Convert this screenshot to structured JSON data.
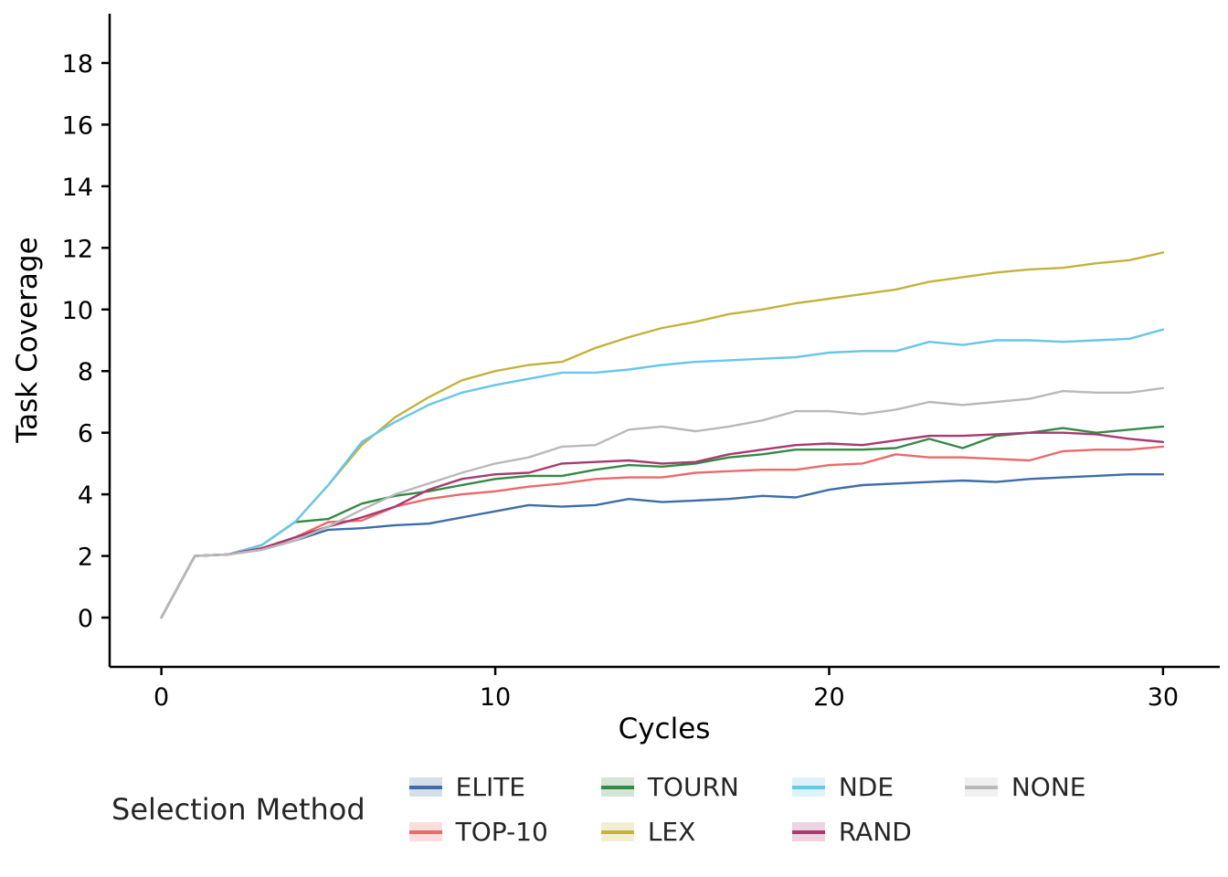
{
  "chart_data": {
    "type": "line",
    "title": "",
    "xlabel": "Cycles",
    "ylabel": "Task Coverage",
    "x": [
      0,
      1,
      2,
      3,
      4,
      5,
      6,
      7,
      8,
      9,
      10,
      11,
      12,
      13,
      14,
      15,
      16,
      17,
      18,
      19,
      20,
      21,
      22,
      23,
      24,
      25,
      26,
      27,
      28,
      29,
      30
    ],
    "xticks": [
      0,
      10,
      20,
      30
    ],
    "yticks": [
      0,
      2,
      4,
      6,
      8,
      10,
      12,
      14,
      16,
      18
    ],
    "xlim": [
      -1.55,
      31.7
    ],
    "ylim": [
      -1.6,
      19.6
    ],
    "grid": false,
    "legend_position": "bottom",
    "series": [
      {
        "name": "ELITE",
        "color": "#3e6da8",
        "values": [
          0,
          2.0,
          2.05,
          2.2,
          2.5,
          2.85,
          2.9,
          3.0,
          3.05,
          3.25,
          3.45,
          3.65,
          3.6,
          3.65,
          3.85,
          3.75,
          3.8,
          3.85,
          3.95,
          3.9,
          4.15,
          4.3,
          4.35,
          4.4,
          4.45,
          4.4,
          4.5,
          4.55,
          4.6,
          4.65,
          4.65
        ]
      },
      {
        "name": "TOP-10",
        "color": "#ea6a6a",
        "values": [
          0,
          2.0,
          2.05,
          2.2,
          2.6,
          3.1,
          3.15,
          3.6,
          3.85,
          4.0,
          4.1,
          4.25,
          4.35,
          4.5,
          4.55,
          4.55,
          4.7,
          4.75,
          4.8,
          4.8,
          4.95,
          5.0,
          5.3,
          5.2,
          5.2,
          5.15,
          5.1,
          5.4,
          5.45,
          5.45,
          5.55
        ]
      },
      {
        "name": "TOURN",
        "color": "#338a44",
        "values": [
          0,
          2.0,
          2.05,
          2.35,
          3.1,
          3.2,
          3.7,
          3.95,
          4.1,
          4.3,
          4.5,
          4.6,
          4.6,
          4.8,
          4.95,
          4.9,
          5.0,
          5.2,
          5.3,
          5.45,
          5.45,
          5.45,
          5.5,
          5.8,
          5.5,
          5.9,
          6.0,
          6.15,
          6.0,
          6.1,
          6.2
        ]
      },
      {
        "name": "LEX",
        "color": "#c4b23d",
        "values": [
          0,
          2.0,
          2.05,
          2.35,
          3.1,
          4.3,
          5.6,
          6.5,
          7.15,
          7.7,
          8.0,
          8.2,
          8.3,
          8.75,
          9.1,
          9.4,
          9.6,
          9.85,
          10.0,
          10.2,
          10.35,
          10.5,
          10.65,
          10.9,
          11.05,
          11.2,
          11.3,
          11.35,
          11.5,
          11.6,
          11.85
        ]
      },
      {
        "name": "NDE",
        "color": "#67c6ea",
        "values": [
          0,
          2.0,
          2.05,
          2.35,
          3.1,
          4.3,
          5.7,
          6.35,
          6.9,
          7.3,
          7.55,
          7.75,
          7.95,
          7.95,
          8.05,
          8.2,
          8.3,
          8.35,
          8.4,
          8.45,
          8.6,
          8.65,
          8.65,
          8.95,
          8.85,
          9.0,
          9.0,
          8.95,
          9.0,
          9.05,
          9.35
        ]
      },
      {
        "name": "RAND",
        "color": "#a83a70",
        "values": [
          0,
          2.0,
          2.05,
          2.25,
          2.6,
          2.95,
          3.25,
          3.6,
          4.15,
          4.5,
          4.65,
          4.7,
          5.0,
          5.05,
          5.1,
          5.0,
          5.05,
          5.3,
          5.45,
          5.6,
          5.65,
          5.6,
          5.75,
          5.9,
          5.9,
          5.95,
          6.0,
          6.0,
          5.95,
          5.8,
          5.7
        ]
      },
      {
        "name": "NONE",
        "color": "#b9b9b9",
        "values": [
          0,
          2.0,
          2.05,
          2.2,
          2.5,
          2.95,
          3.5,
          4.0,
          4.35,
          4.7,
          5.0,
          5.2,
          5.55,
          5.6,
          6.1,
          6.2,
          6.05,
          6.2,
          6.4,
          6.7,
          6.7,
          6.6,
          6.75,
          7.0,
          6.9,
          7.0,
          7.1,
          7.35,
          7.3,
          7.3,
          7.45
        ]
      }
    ],
    "legend": {
      "title": "Selection Method",
      "entries": [
        "ELITE",
        "TOP-10",
        "TOURN",
        "LEX",
        "NDE",
        "RAND",
        "NONE"
      ]
    }
  }
}
